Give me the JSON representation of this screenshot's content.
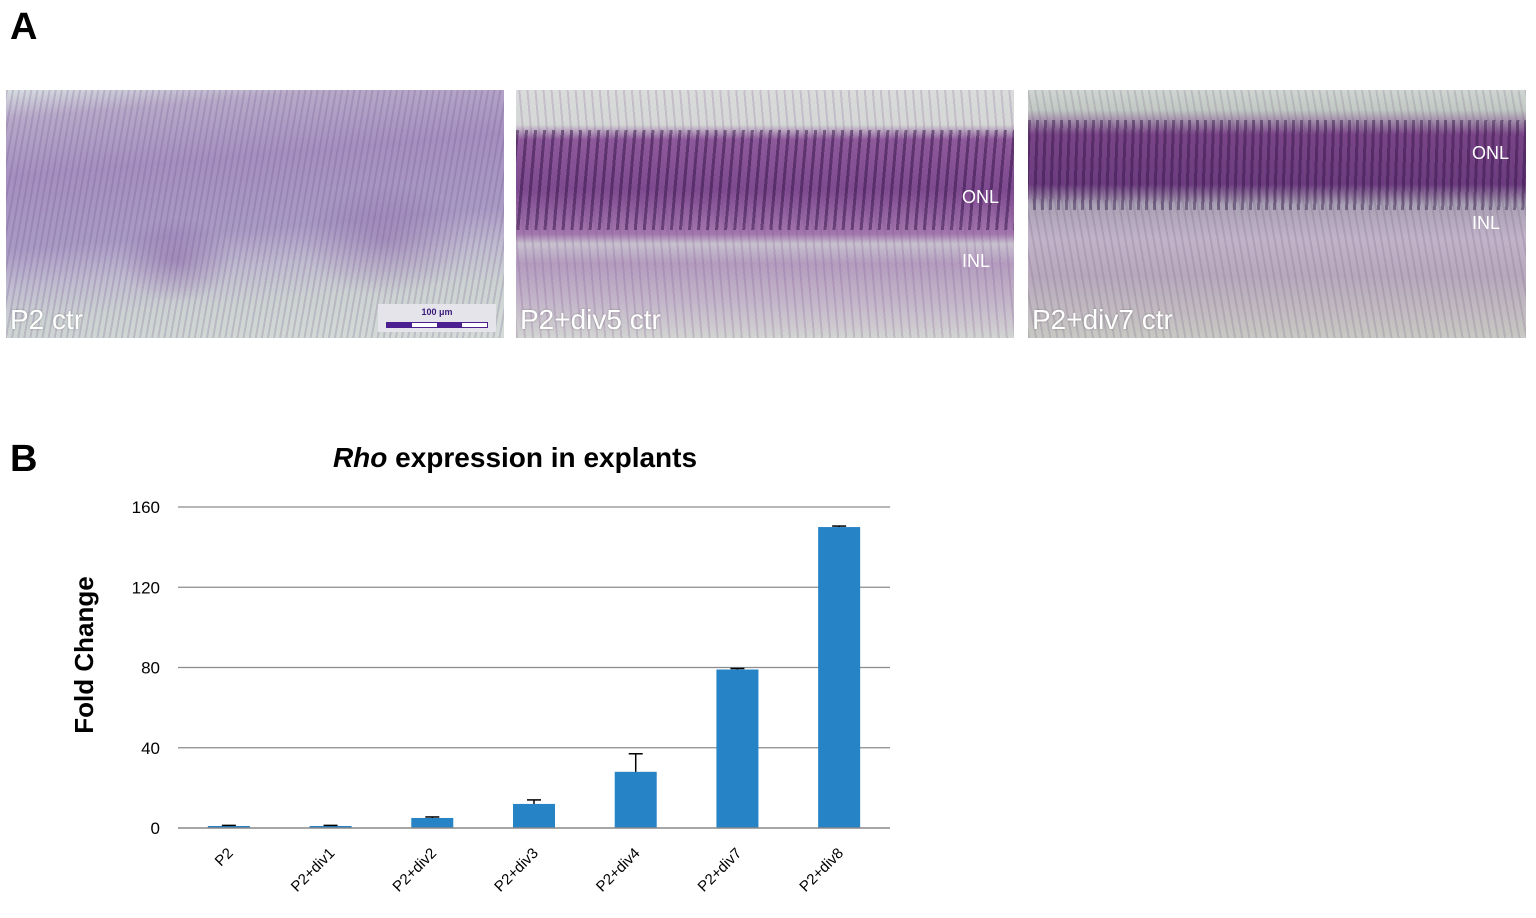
{
  "panel_labels": {
    "a": "A",
    "b": "B"
  },
  "micrographs": [
    {
      "label": "P2 ctr",
      "scale_bar": "100 μm"
    },
    {
      "label": "P2+div5 ctr",
      "layers": [
        "ONL",
        "INL"
      ]
    },
    {
      "label": "P2+div7 ctr",
      "layers": [
        "ONL",
        "INL"
      ]
    }
  ],
  "chart_data": {
    "type": "bar",
    "title_italic": "Rho",
    "title_rest": " expression in explants",
    "ylabel": "Fold Change",
    "xlabel": "",
    "categories": [
      "P2",
      "P2+div1",
      "P2+div2",
      "P2+div3",
      "P2+div4",
      "P2+div7",
      "P2+div8"
    ],
    "values": [
      1,
      1,
      5,
      12,
      28,
      79,
      150
    ],
    "errors": [
      0.3,
      0.3,
      0.5,
      2,
      9,
      0.5,
      0.5
    ],
    "ylim": [
      0,
      160
    ],
    "yticks": [
      0,
      40,
      80,
      120,
      160
    ],
    "bar_color": "#2683c6",
    "grid": true,
    "legend": "none"
  }
}
